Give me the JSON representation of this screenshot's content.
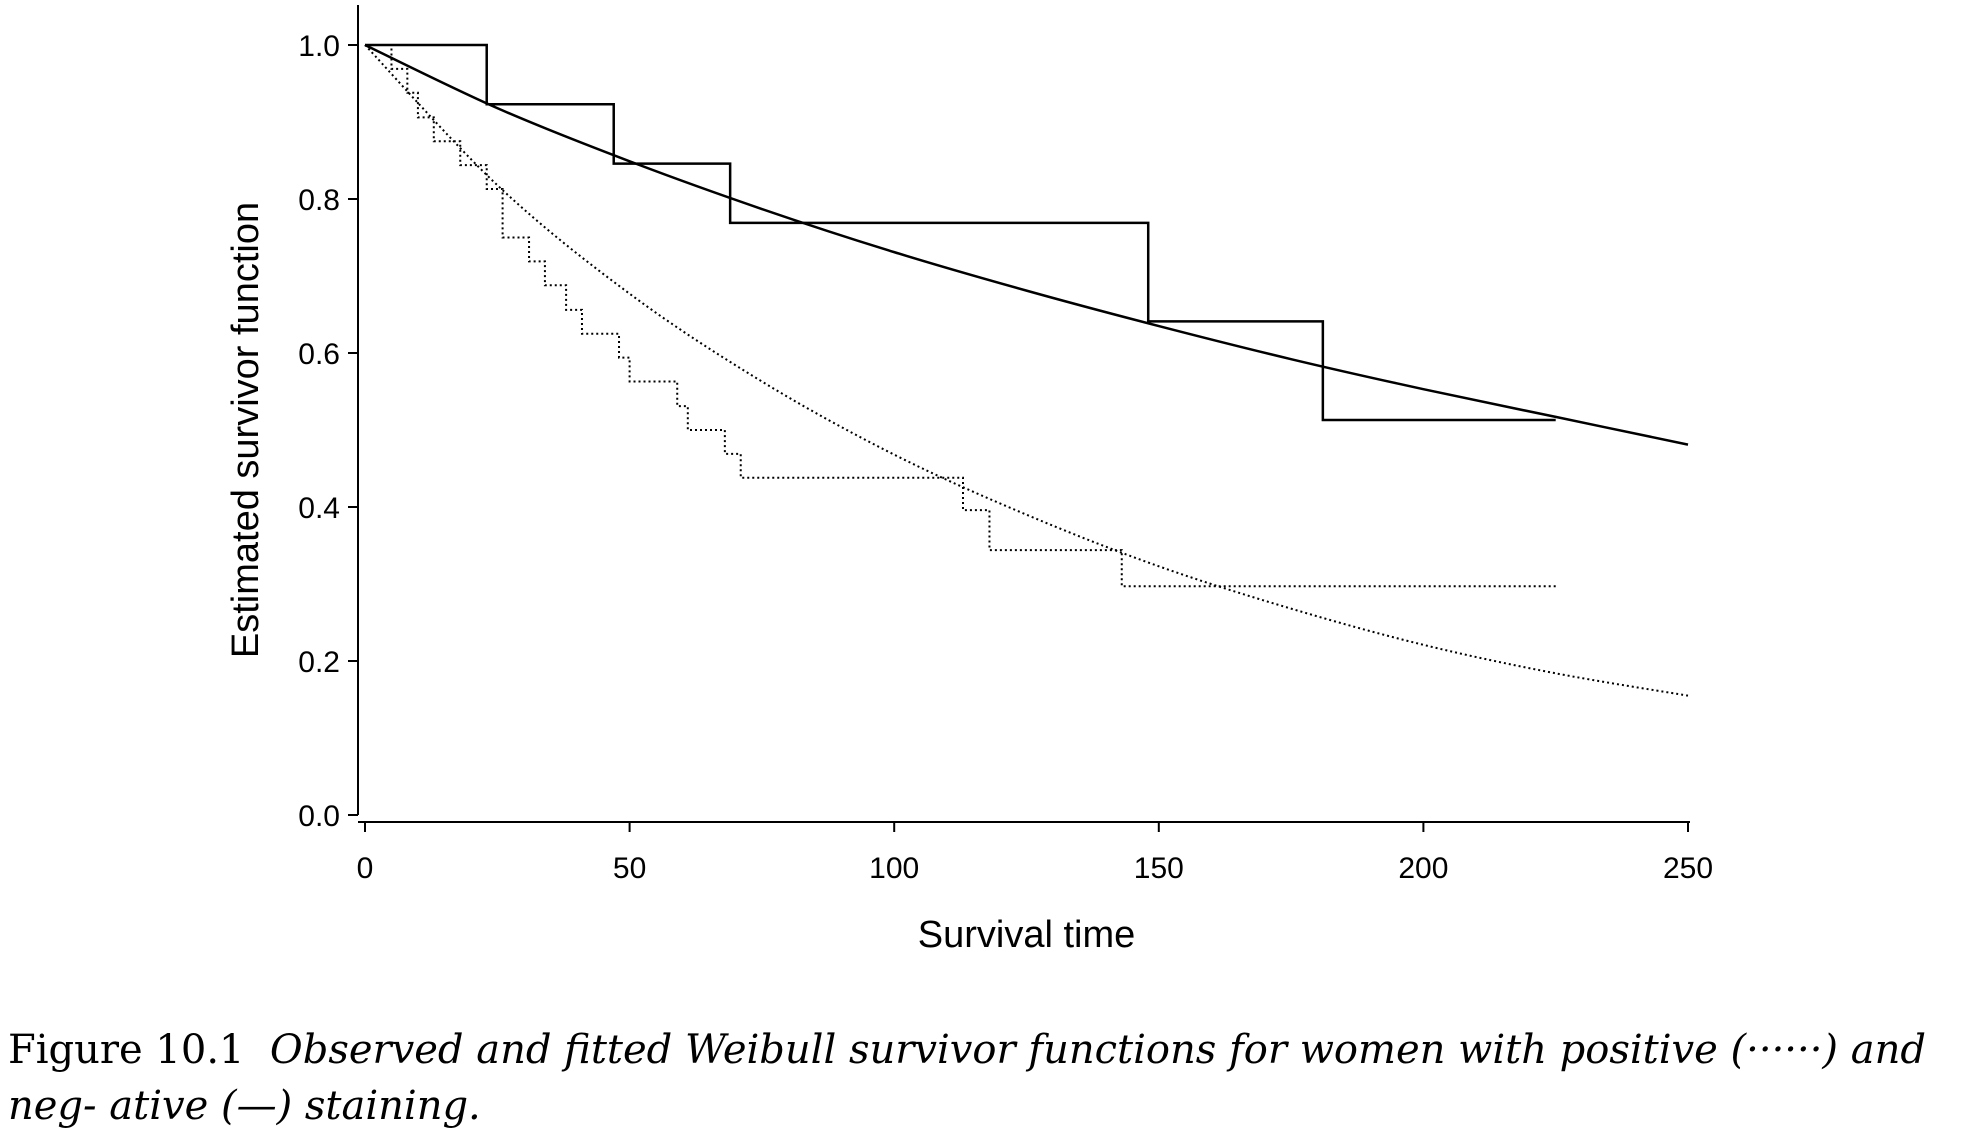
{
  "chart_data": {
    "type": "line",
    "xlabel": "Survival time",
    "ylabel": "Estimated survivor function",
    "xlim": [
      0,
      250
    ],
    "ylim": [
      0,
      1
    ],
    "xticks": [
      0,
      50,
      100,
      150,
      200,
      250
    ],
    "yticks": [
      0.0,
      0.2,
      0.4,
      0.6,
      0.8,
      1.0
    ],
    "xtick_labels": [
      "0",
      "50",
      "100",
      "150",
      "200",
      "250"
    ],
    "ytick_labels": [
      "0.0",
      "0.2",
      "0.4",
      "0.6",
      "0.8",
      "1.0"
    ],
    "grid": false,
    "series": [
      {
        "style": "solid",
        "kind": "step",
        "x": [
          0,
          23,
          47,
          69,
          148,
          181,
          225
        ],
        "y": [
          1.0,
          0.923,
          0.846,
          0.769,
          0.641,
          0.513,
          0.513
        ]
      },
      {
        "style": "dotted",
        "kind": "step",
        "x": [
          0,
          5,
          8,
          10,
          13,
          18,
          23,
          26,
          31,
          34,
          38,
          41,
          48,
          50,
          59,
          61,
          68,
          71,
          113,
          118,
          143,
          225
        ],
        "y": [
          1.0,
          0.969,
          0.938,
          0.906,
          0.875,
          0.844,
          0.813,
          0.75,
          0.719,
          0.688,
          0.656,
          0.625,
          0.594,
          0.563,
          0.531,
          0.5,
          0.469,
          0.438,
          0.396,
          0.344,
          0.297,
          0.297
        ]
      },
      {
        "style": "solid",
        "kind": "curve",
        "x": [
          0,
          25,
          50,
          75,
          100,
          125,
          150,
          175,
          200,
          225,
          250
        ],
        "y": [
          1.0,
          0.918,
          0.849,
          0.787,
          0.731,
          0.681,
          0.635,
          0.592,
          0.553,
          0.517,
          0.481
        ]
      },
      {
        "style": "dotted",
        "kind": "curve",
        "x": [
          0,
          25,
          50,
          75,
          100,
          125,
          150,
          175,
          200,
          225,
          250
        ],
        "y": [
          1.0,
          0.818,
          0.677,
          0.563,
          0.468,
          0.39,
          0.323,
          0.268,
          0.221,
          0.184,
          0.155
        ]
      }
    ]
  },
  "caption": {
    "label": "Figure 10.1",
    "text": "Observed and fitted Weibull survivor functions for women with positive (······) and neg- ative (—) staining."
  }
}
